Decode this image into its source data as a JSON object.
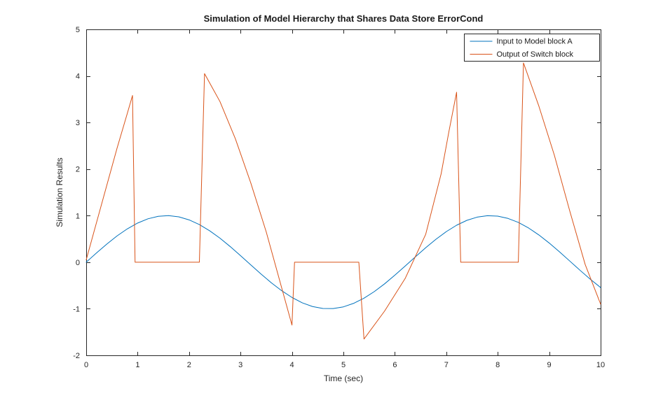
{
  "figure": {
    "background": "#ffffff"
  },
  "chart_data": {
    "type": "line",
    "title": "Simulation of Model Hierarchy that Shares Data Store ErrorCond",
    "xlabel": "Time (sec)",
    "ylabel": "Simulation Results",
    "xlim": [
      0,
      10
    ],
    "ylim": [
      -2,
      5
    ],
    "xticks": [
      0,
      1,
      2,
      3,
      4,
      5,
      6,
      7,
      8,
      9,
      10
    ],
    "yticks": [
      -2,
      -1,
      0,
      1,
      2,
      3,
      4,
      5
    ],
    "grid": false,
    "axis_color": "#262626",
    "legend": {
      "position": "top-right",
      "entries": [
        "Input to Model block A",
        "Output of Switch block"
      ]
    },
    "series": [
      {
        "name": "Input to Model block A",
        "color": "#0072BD",
        "x": [
          0,
          0.2,
          0.4,
          0.6,
          0.8,
          1,
          1.2,
          1.4,
          1.6,
          1.8,
          2,
          2.2,
          2.4,
          2.6,
          2.8,
          3,
          3.2,
          3.4,
          3.6,
          3.8,
          4,
          4.2,
          4.4,
          4.6,
          4.8,
          5,
          5.2,
          5.4,
          5.6,
          5.8,
          6,
          6.2,
          6.4,
          6.6,
          6.8,
          7,
          7.2,
          7.4,
          7.6,
          7.8,
          8,
          8.2,
          8.4,
          8.6,
          8.8,
          9,
          9.2,
          9.4,
          9.6,
          9.8,
          10
        ],
        "y": [
          0,
          0.199,
          0.389,
          0.565,
          0.717,
          0.841,
          0.932,
          0.985,
          1.0,
          0.974,
          0.909,
          0.808,
          0.675,
          0.516,
          0.335,
          0.141,
          -0.058,
          -0.256,
          -0.443,
          -0.612,
          -0.757,
          -0.872,
          -0.952,
          -0.994,
          -0.996,
          -0.959,
          -0.883,
          -0.773,
          -0.631,
          -0.465,
          -0.279,
          -0.083,
          0.117,
          0.312,
          0.494,
          0.657,
          0.794,
          0.899,
          0.968,
          0.999,
          0.989,
          0.94,
          0.855,
          0.734,
          0.585,
          0.412,
          0.223,
          0.025,
          -0.174,
          -0.366,
          -0.544
        ]
      },
      {
        "name": "Output of Switch block",
        "color": "#D95319",
        "x": [
          0,
          0.2,
          0.4,
          0.6,
          0.8,
          0.9,
          0.95,
          2.2,
          2.3,
          2.6,
          2.9,
          3.2,
          3.5,
          3.8,
          4,
          4.05,
          5.3,
          5.4,
          5.8,
          6.2,
          6.6,
          6.9,
          7.05,
          7.2,
          7.28,
          8.4,
          8.5,
          8.8,
          9.1,
          9.4,
          9.7,
          10
        ],
        "y": [
          0.05,
          0.85,
          1.65,
          2.45,
          3.2,
          3.58,
          0,
          0,
          4.05,
          3.45,
          2.65,
          1.7,
          0.65,
          -0.55,
          -1.35,
          0,
          0,
          -1.65,
          -1.05,
          -0.35,
          0.6,
          1.9,
          2.8,
          3.65,
          0,
          0,
          4.28,
          3.35,
          2.3,
          1.1,
          -0.05,
          -0.9
        ]
      }
    ]
  }
}
